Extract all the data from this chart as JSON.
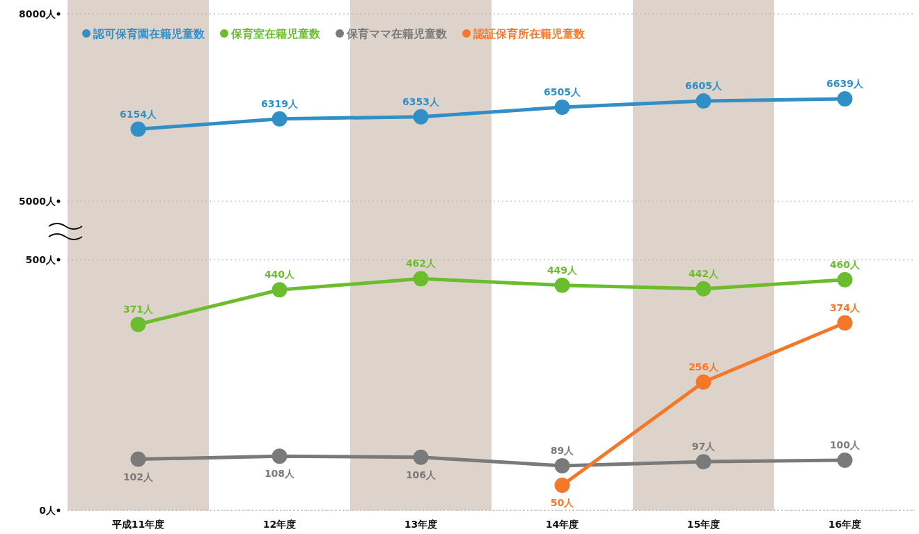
{
  "chart_data": [
    {
      "type": "line",
      "categories": [
        null,
        null,
        null,
        null,
        null,
        null
      ],
      "tick_labels": "y",
      "ylim": [
        5000,
        8000
      ],
      "yticks": [
        {
          "value": 5000,
          "label": "5000人"
        },
        {
          "value": 8000,
          "label": "8000人"
        }
      ],
      "grid": "y",
      "marker": "circle",
      "legend": "top left",
      "series": [
        {
          "name": "認可保育園在籍児童数",
          "color": "#2f8fc6",
          "values": [
            6154,
            6319,
            6353,
            6505,
            6605,
            6639
          ],
          "value_labels": [
            "6154人",
            "6319人",
            "6353人",
            "6505人",
            "6605人",
            "6639人"
          ]
        }
      ]
    },
    {
      "type": "line",
      "categories": [
        "平成11年度",
        "12年度",
        "13年度",
        "14年度",
        "15年度",
        "16年度"
      ],
      "ylim": [
        0,
        500
      ],
      "yticks": [
        {
          "value": 0,
          "label": "0人"
        },
        {
          "value": 500,
          "label": "500人"
        }
      ],
      "grid": "y",
      "marker": "circle",
      "legend": "top left",
      "bands": [
        {
          "axis": "x",
          "from": "平成11年度",
          "to": "平成11年度",
          "color": "#ddd3cb"
        },
        {
          "axis": "x",
          "from": "13年度",
          "to": "13年度",
          "color": "#ddd3cb"
        },
        {
          "axis": "x",
          "from": "15年度",
          "to": "15年度",
          "color": "#ddd3cb"
        }
      ],
      "series": [
        {
          "name": "保育室在籍児童数",
          "color": "#6bbd2e",
          "values": [
            371,
            440,
            462,
            449,
            442,
            460
          ],
          "value_labels": [
            "371人",
            "440人",
            "462人",
            "449人",
            "442人",
            "460人"
          ]
        },
        {
          "name": "保育ママ在籍児童数",
          "color": "#7a7a7a",
          "values": [
            102,
            108,
            106,
            89,
            97,
            100
          ],
          "value_labels": [
            "102人",
            "108人",
            "106人",
            "89人",
            "97人",
            "100人"
          ]
        },
        {
          "name": "認証保育所在籍児童数",
          "color": "#f5782a",
          "values": [
            null,
            null,
            null,
            50,
            256,
            374
          ],
          "value_labels": [
            null,
            null,
            null,
            "50人",
            "256人",
            "374人"
          ]
        }
      ]
    }
  ]
}
